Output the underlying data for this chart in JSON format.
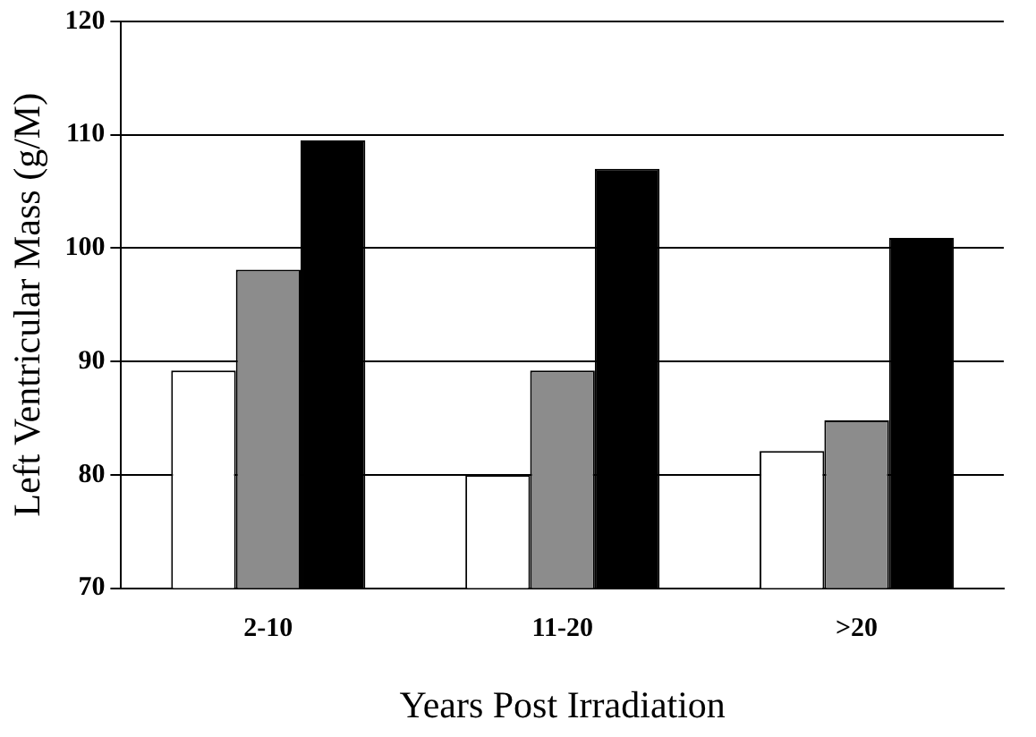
{
  "chart_data": {
    "type": "bar",
    "xlabel": "Years Post Irradiation",
    "ylabel": "Left Ventricular Mass (g/M)",
    "categories": [
      "2-10",
      "11-20",
      ">20"
    ],
    "series": [
      {
        "color": "#ffffff",
        "values": [
          89.2,
          80,
          82.1
        ]
      },
      {
        "color": "#8c8c8c",
        "values": [
          98.1,
          89.2,
          84.8
        ]
      },
      {
        "color": "#000000",
        "values": [
          109.5,
          107,
          100.9
        ]
      }
    ],
    "ylim": [
      70,
      120
    ],
    "yticks": [
      70,
      80,
      90,
      100,
      110,
      120
    ],
    "grid": "y",
    "legend": false
  }
}
